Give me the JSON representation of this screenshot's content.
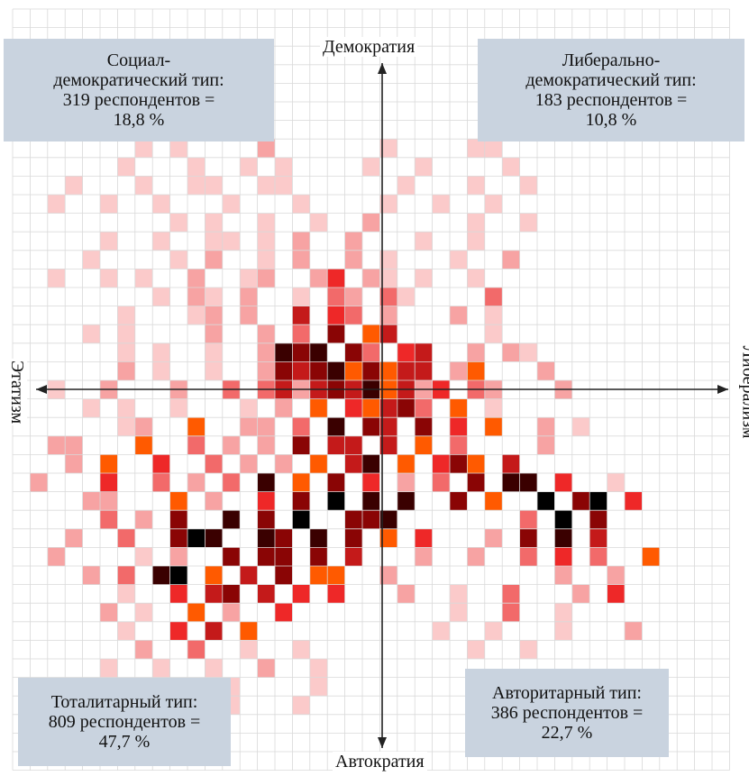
{
  "chart_data": {
    "type": "heatmap",
    "axes": {
      "y_positive": "Демократия",
      "y_negative": "Автократия",
      "x_negative": "Этатизм",
      "x_positive": "Либерализм"
    },
    "quadrants": {
      "top_left": {
        "line1": "Социал-",
        "line2": "демократический тип:",
        "line3": "319 респондентов =",
        "line4": "18,8 %"
      },
      "top_right": {
        "line1": "Либерально-",
        "line2": "демократический тип:",
        "line3": "183 респондентов =",
        "line4": "10,8 %"
      },
      "bottom_left": {
        "line1": "Тоталитарный тип:",
        "line2": "809 респондентов =",
        "line3": "47,7 %"
      },
      "bottom_right": {
        "line1": "Авторитарный тип:",
        "line2": "386 респондентов =",
        "line3": "22,7 %"
      }
    },
    "grid": true,
    "colors": {
      "grid": "#d9d9d9",
      "axis": "#222222",
      "scale": [
        "#fde4e4",
        "#fbcaca",
        "#f7a3a3",
        "#f26a6a",
        "#ee2828",
        "#ff5a00",
        "#c41a1a",
        "#8a0505",
        "#3a0000",
        "#000000"
      ]
    },
    "density_rows": [
      ".........................................",
      ".........................................",
      ".........................................",
      ".........................................",
      ".........................................",
      ".........................................",
      ".........................................",
      ".......1.1....2......1....11.............",
      "......1...1..1.1....1..1....1............",
      "...1...1..11..11......1...1..1...........",
      "..1..1..1...1...1....1..1..1.............",
      ".........1.1..1..1..2.....1..1...........",
      ".....1..1..11.1.2..2...1..1..............",
      "....1....1.2..1.2..2.1...1..2............",
      "..1..1.1..2..12..24.21.1..1..............",
      "........1.21.2..1.32.31....3.............",
      "......1...12.2..6.43.2...2.1.............",
      "....1.1....2..2.3.7.56.....1.............",
      "......1.1..1..2878.73.46..2.21...........",
      "......2.1..1..2767857566.25...2..........",
      "..1..2...2..3.36267685624.32...2.........",
      "....1.1..1...1.2.5.45673.5.1.............",
      "......12..5..22.3.8.76.7.4.5..2.1........",
      "..22...5..3.2.2.7.66.6.5.3....2..........",
      "...2.5..4..3.2.2.5.68.5.475.6............",
      ".2...4..3.2.3.8.5.7.4.2.3.7.88.4..1......",
      "....22...5.2..4.7.9.8.8..7.5..9.79.4.....",
      ".....3.2.7..8.7.9..778.......3.9.7.......",
      "...2..3..798..87.8.7.5.4...2.7.8.6.......",
      "..2....1.2..7.77.7.6...2..2..3.4.3..5....",
      "....2.3.89.5.6.7.55..2.........2..2......",
      "......1..4.67.6.4.4...2..1..3...2.4......",
      ".....2.1..5.2..4.........1..3..1.........",
      "......1..4.6.5..........1..1...1...2.....",
      ".......2..3..1..1.........1..1...........",
      ".....1..1..1..2..1.......................",
      "......1..1..1....1.......................",
      ".......1..2.1...1........................",
      "......1...1..............................",
      "........1.1..............................",
      "........................................."
    ]
  }
}
